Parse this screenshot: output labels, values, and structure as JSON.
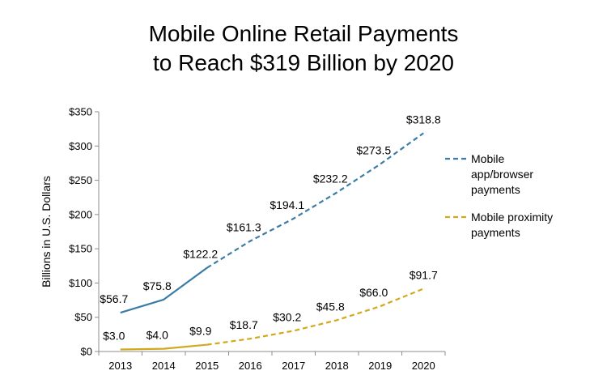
{
  "chart_data": {
    "type": "line",
    "title_line1": "Mobile Online Retail Payments",
    "title_line2": "to Reach $319 Billion by 2020",
    "ylabel": "Billions in U.S. Dollars",
    "xlabel": "",
    "categories": [
      "2013",
      "2014",
      "2015",
      "2016",
      "2017",
      "2018",
      "2019",
      "2020"
    ],
    "ylim": [
      0,
      350
    ],
    "yticks": [
      "$0",
      "$50",
      "$100",
      "$150",
      "$200",
      "$250",
      "$300",
      "$350"
    ],
    "legend_position": "right",
    "grid": false,
    "series": [
      {
        "name": "Mobile app/browser payments",
        "legend_lines": [
          "Mobile",
          "app/browser",
          "payments"
        ],
        "color": "#3A7CA5",
        "values": [
          56.7,
          75.8,
          122.2,
          161.3,
          194.1,
          232.2,
          273.5,
          318.8
        ],
        "labels": [
          "$56.7",
          "$75.8",
          "$122.2",
          "$161.3",
          "$194.1",
          "$232.2",
          "$273.5",
          "$318.8"
        ],
        "solid_until": "2015",
        "projected_style": "dashed"
      },
      {
        "name": "Mobile proximity payments",
        "legend_lines": [
          "Mobile proximity",
          "payments"
        ],
        "color": "#D4A81C",
        "values": [
          3.0,
          4.0,
          9.9,
          18.7,
          30.2,
          45.8,
          66.0,
          91.7
        ],
        "labels": [
          "$3.0",
          "$4.0",
          "$9.9",
          "$18.7",
          "$30.2",
          "$45.8",
          "$66.0",
          "$91.7"
        ],
        "solid_until": "2015",
        "projected_style": "dashed"
      }
    ]
  }
}
